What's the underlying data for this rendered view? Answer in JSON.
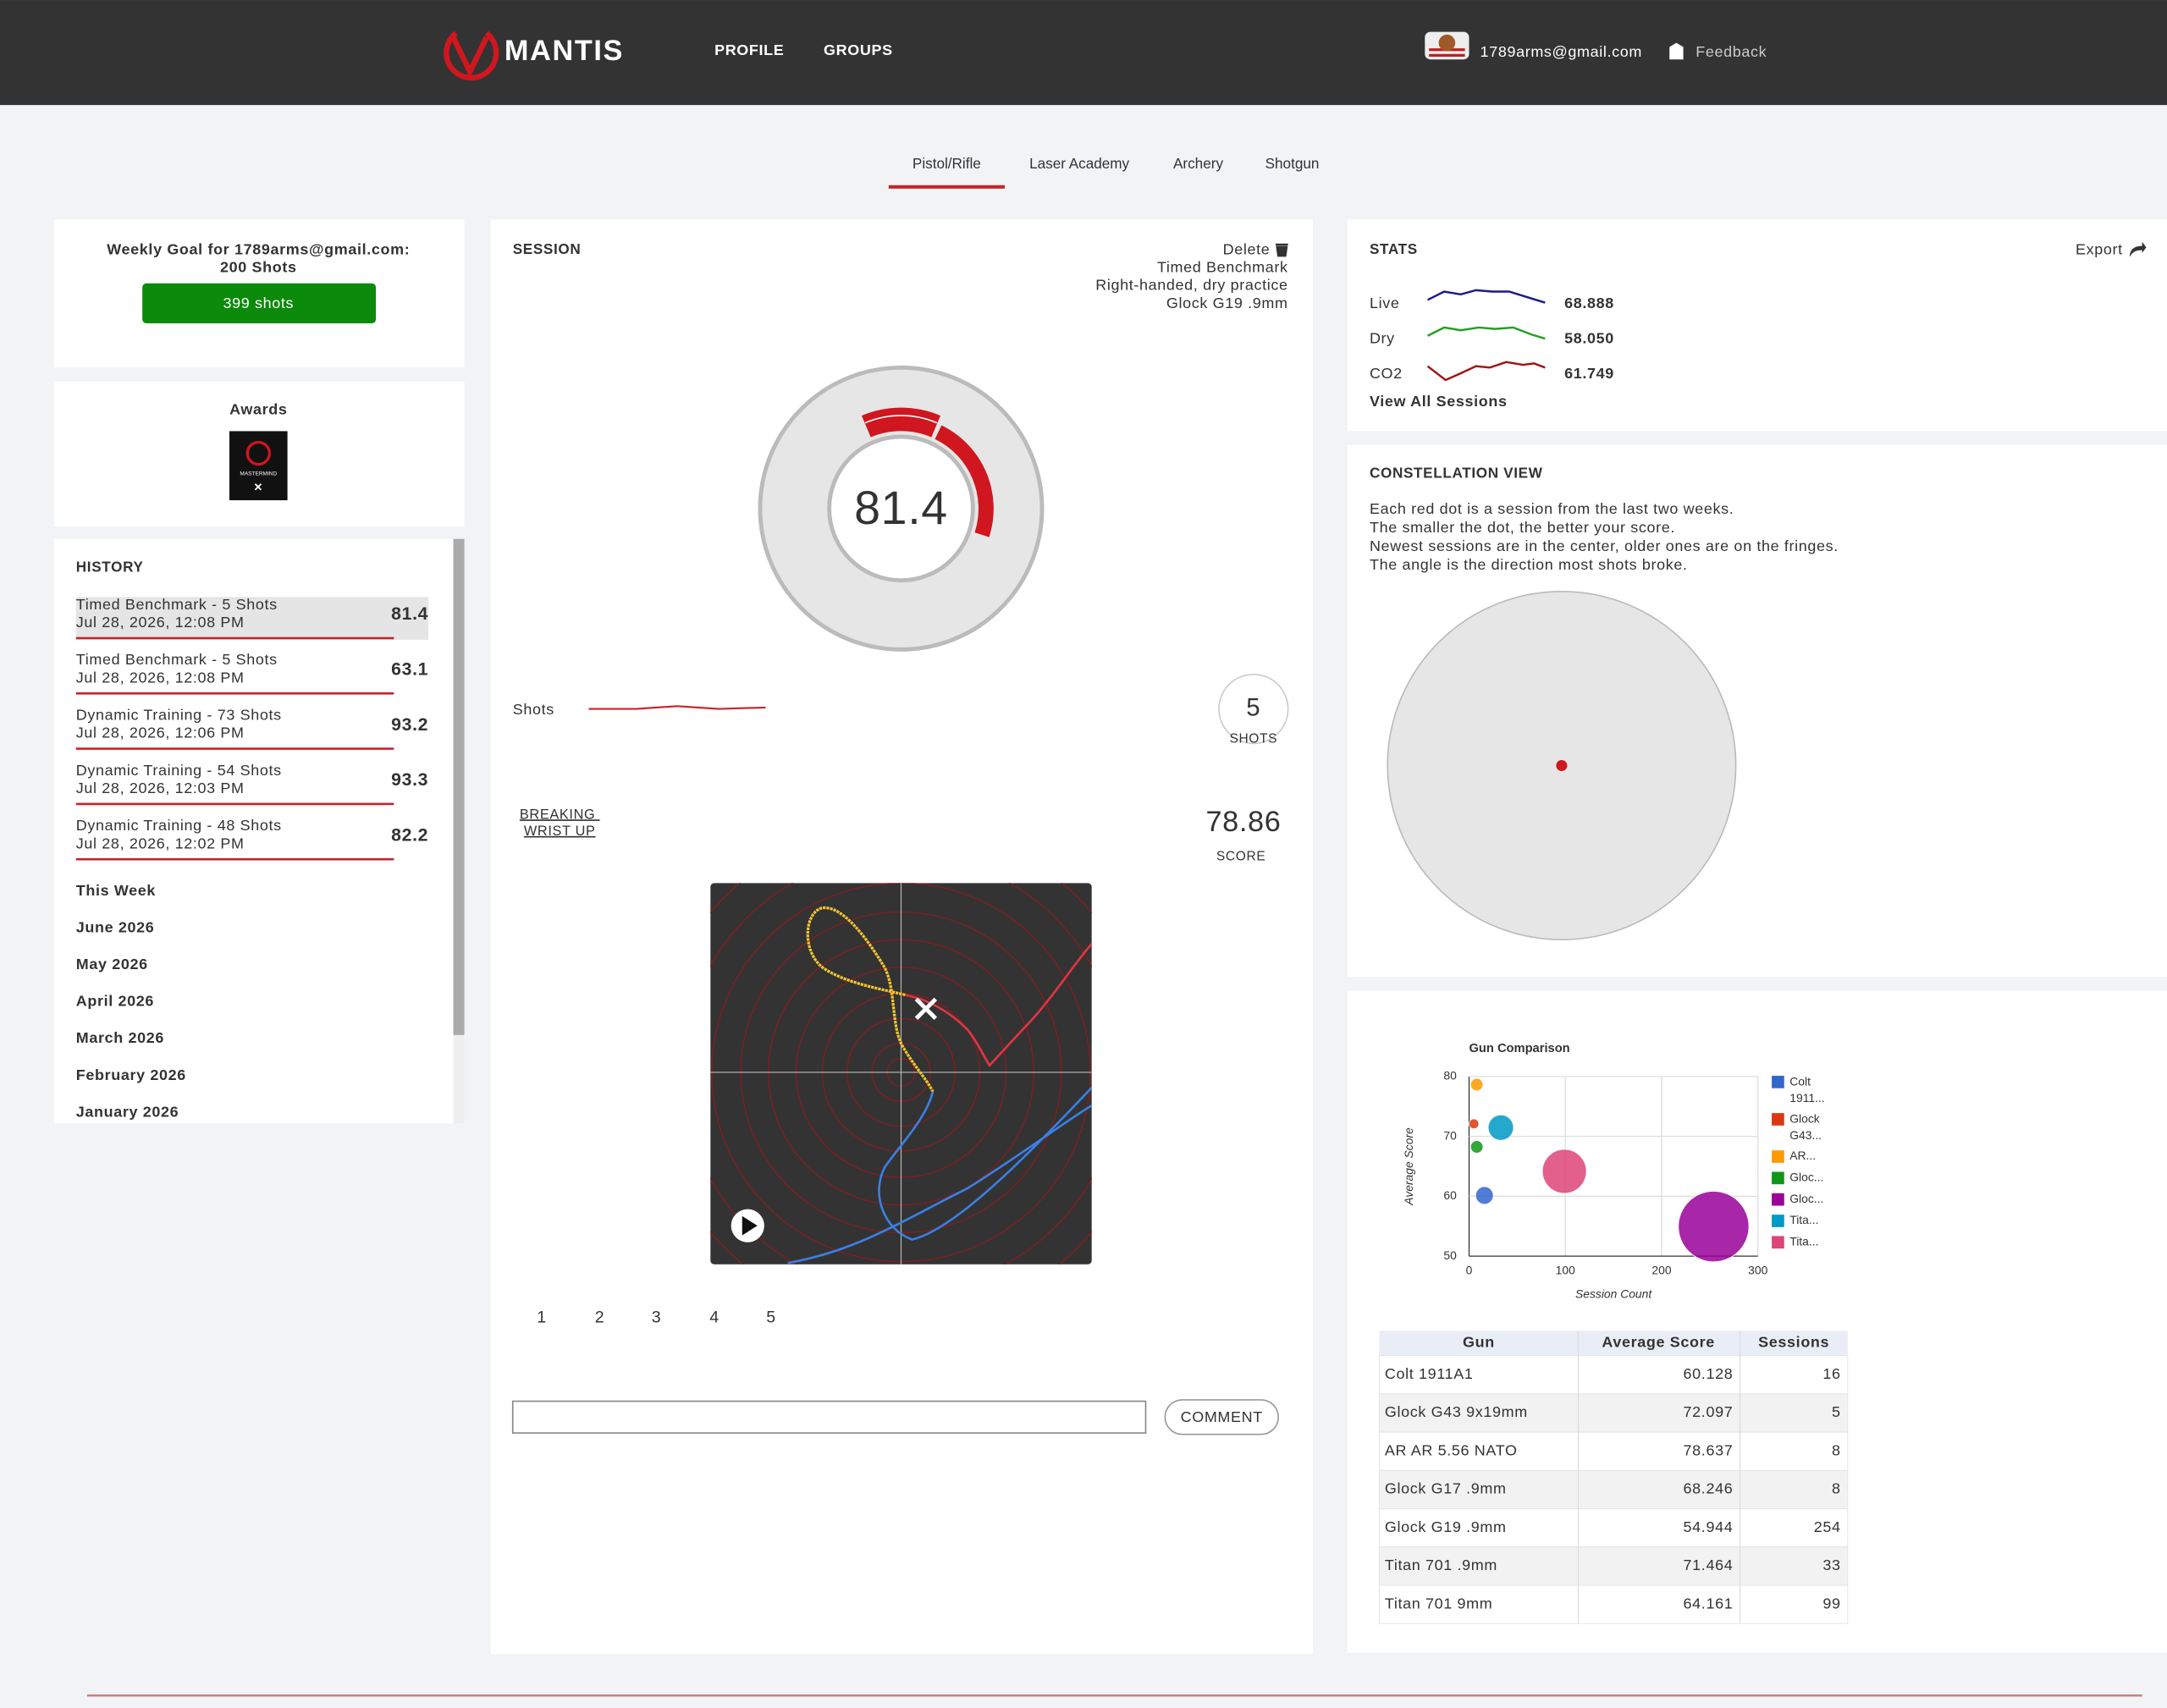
{
  "header": {
    "brand": "MANTIS",
    "nav": [
      "PROFILE",
      "GROUPS"
    ],
    "user": "1789arms@gmail.com",
    "feedback": "Feedback"
  },
  "tabs": {
    "items": [
      "Pistol/Rifle",
      "Laser Academy",
      "Archery",
      "Shotgun"
    ],
    "active": 0
  },
  "weekly_goal": {
    "title": "Weekly Goal for 1789arms@gmail.com:",
    "goal": "200 Shots",
    "progress": "399 shots"
  },
  "awards": {
    "title": "Awards",
    "badge": "MASTERMIND"
  },
  "history": {
    "title": "HISTORY",
    "sessions": [
      {
        "name": "Timed Benchmark - 5 Shots",
        "date": "Jul 28, 2026, 12:08 PM",
        "score": 81.4
      },
      {
        "name": "Timed Benchmark - 5 Shots",
        "date": "Jul 28, 2026, 12:08 PM",
        "score": 63.1
      },
      {
        "name": "Dynamic Training - 73 Shots",
        "date": "Jul 28, 2026, 12:06 PM",
        "score": 93.2
      },
      {
        "name": "Dynamic Training - 54 Shots",
        "date": "Jul 28, 2026, 12:03 PM",
        "score": 93.3
      },
      {
        "name": "Dynamic Training - 48 Shots",
        "date": "Jul 28, 2026, 12:02 PM",
        "score": 82.2
      }
    ],
    "periods": [
      "This Week",
      "June 2026",
      "May 2026",
      "April 2026",
      "March 2026",
      "February 2026",
      "January 2026"
    ]
  },
  "session": {
    "title": "SESSION",
    "delete": "Delete",
    "drill": "Timed Benchmark",
    "setup": "Right-handed, dry practice",
    "gun": "Glock G19 .9mm",
    "score": 81.4,
    "shots_label": "Shots",
    "shot_count": 5,
    "shots_unit": "SHOTS",
    "analysis": "BREAKING WRIST UP",
    "shot_score": 78.86,
    "score_label": "SCORE",
    "shot_tabs": [
      1,
      2,
      3,
      4,
      5
    ],
    "comment": "COMMENT"
  },
  "stats": {
    "title": "STATS",
    "export": "Export",
    "link": "View All Sessions",
    "rows": [
      {
        "name": "Live",
        "value": "68.888",
        "color": "#1a1a8c"
      },
      {
        "name": "Dry",
        "value": "58.050",
        "color": "#22a022"
      },
      {
        "name": "CO2",
        "value": "61.749",
        "color": "#a01414"
      }
    ]
  },
  "constellation": {
    "title": "CONSTELLATION VIEW",
    "description": [
      "Each red dot is a session from the last two weeks.",
      "The smaller the dot, the better your score.",
      "Newest sessions are in the center, older ones are on the fringes.",
      "The angle is the direction most shots broke."
    ]
  },
  "chart_data": {
    "type": "scatter",
    "title": "Gun Comparison",
    "x_label": "Session Count",
    "y_label": "Average Score",
    "xlim": [
      0,
      300
    ],
    "xticks": [
      0,
      100,
      200,
      300
    ],
    "ylim": [
      50,
      80
    ],
    "yticks": [
      50,
      60,
      70,
      80
    ],
    "grid": true,
    "series": [
      {
        "name": "Colt 1911...",
        "color": "#3366cc"
      },
      {
        "name": "Glock G43...",
        "color": "#dc3912"
      },
      {
        "name": "AR...",
        "color": "#ff9900"
      },
      {
        "name": "Gloc...",
        "color": "#109618"
      },
      {
        "name": "Gloc...",
        "color": "#990099"
      },
      {
        "name": "Tita...",
        "color": "#0099c6"
      },
      {
        "name": "Tita...",
        "color": "#dd4477"
      }
    ]
  },
  "gun_table": {
    "header": [
      "Gun",
      "Average Score",
      "Sessions"
    ],
    "rows": [
      [
        "Colt 1911A1",
        60.128,
        16
      ],
      [
        "Glock G43 9x19mm",
        72.097,
        5
      ],
      [
        "AR AR 5.56 NATO",
        78.637,
        8
      ],
      [
        "Glock G17 .9mm",
        68.246,
        8
      ],
      [
        "Glock G19 .9mm",
        54.944,
        254
      ],
      [
        "Titan 701 .9mm",
        71.464,
        33
      ],
      [
        "Titan 701 9mm",
        64.161,
        99
      ]
    ]
  }
}
